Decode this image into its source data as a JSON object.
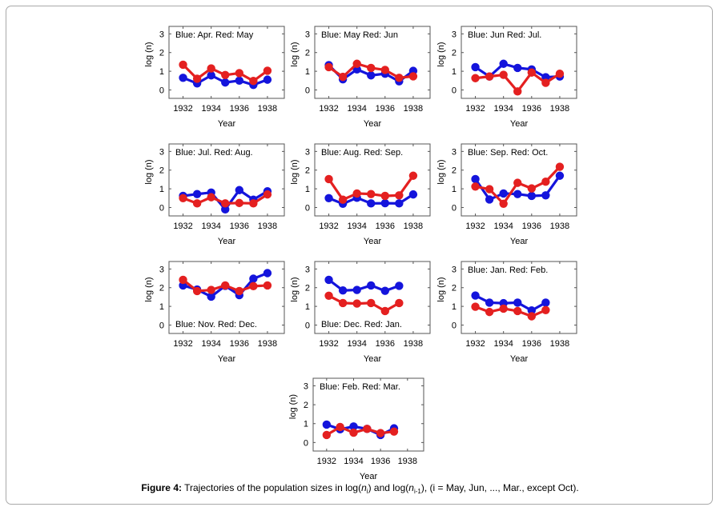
{
  "chart_data": [
    {
      "type": "line",
      "annotation": "Blue: Apr.   Red: May",
      "xlabel": "Year",
      "ylabel": "log (n)",
      "xticks": [
        1932,
        1934,
        1936,
        1938
      ],
      "yticks": [
        0,
        1,
        2,
        3
      ],
      "xlim": [
        1931,
        1939.2
      ],
      "ylim": [
        -0.45,
        3.4
      ],
      "annotation_position": "top",
      "x": [
        1932,
        1933,
        1934,
        1935,
        1936,
        1937,
        1938
      ],
      "series": [
        {
          "name": "Blue: Apr.",
          "color": "#1414dc",
          "values": [
            0.65,
            0.35,
            0.78,
            0.4,
            0.5,
            0.27,
            0.55
          ]
        },
        {
          "name": "Red: May",
          "color": "#e42020",
          "values": [
            1.35,
            0.6,
            1.15,
            0.8,
            0.9,
            0.48,
            1.03
          ]
        }
      ]
    },
    {
      "type": "line",
      "annotation": "Blue: May   Red: Jun",
      "xlabel": "Year",
      "ylabel": "log (n)",
      "xticks": [
        1932,
        1934,
        1936,
        1938
      ],
      "yticks": [
        0,
        1,
        2,
        3
      ],
      "xlim": [
        1931,
        1939.2
      ],
      "ylim": [
        -0.45,
        3.4
      ],
      "annotation_position": "top",
      "x": [
        1932,
        1933,
        1934,
        1935,
        1936,
        1937,
        1938
      ],
      "series": [
        {
          "name": "Blue: May",
          "color": "#1414dc",
          "values": [
            1.33,
            0.57,
            1.1,
            0.78,
            0.87,
            0.46,
            1.02
          ]
        },
        {
          "name": "Red: Jun",
          "color": "#e42020",
          "values": [
            1.22,
            0.7,
            1.4,
            1.18,
            1.07,
            0.65,
            0.73
          ]
        }
      ]
    },
    {
      "type": "line",
      "annotation": "Blue: Jun   Red: Jul.",
      "xlabel": "Year",
      "ylabel": "log (n)",
      "xticks": [
        1932,
        1934,
        1936,
        1938
      ],
      "yticks": [
        0,
        1,
        2,
        3
      ],
      "xlim": [
        1931,
        1939.2
      ],
      "ylim": [
        -0.45,
        3.4
      ],
      "annotation_position": "top",
      "x": [
        1932,
        1933,
        1934,
        1935,
        1936,
        1937,
        1938
      ],
      "series": [
        {
          "name": "Blue: Jun",
          "color": "#1414dc",
          "values": [
            1.22,
            0.72,
            1.4,
            1.18,
            1.1,
            0.68,
            0.72
          ]
        },
        {
          "name": "Red: Jul.",
          "color": "#e42020",
          "values": [
            0.63,
            0.72,
            0.81,
            -0.08,
            0.93,
            0.38,
            0.87
          ]
        }
      ]
    },
    {
      "type": "line",
      "annotation": "Blue: Jul.   Red: Aug.",
      "xlabel": "Year",
      "ylabel": "log (n)",
      "xticks": [
        1932,
        1934,
        1936,
        1938
      ],
      "yticks": [
        0,
        1,
        2,
        3
      ],
      "xlim": [
        1931,
        1939.2
      ],
      "ylim": [
        -0.45,
        3.4
      ],
      "annotation_position": "top",
      "x": [
        1932,
        1933,
        1934,
        1935,
        1936,
        1937,
        1938
      ],
      "series": [
        {
          "name": "Blue: Jul.",
          "color": "#1414dc",
          "values": [
            0.62,
            0.72,
            0.8,
            -0.1,
            0.93,
            0.42,
            0.87
          ]
        },
        {
          "name": "Red: Aug.",
          "color": "#e42020",
          "values": [
            0.5,
            0.22,
            0.55,
            0.22,
            0.24,
            0.22,
            0.7
          ]
        }
      ]
    },
    {
      "type": "line",
      "annotation": "Blue: Aug.   Red: Sep.",
      "xlabel": "Year",
      "ylabel": "log (n)",
      "xticks": [
        1932,
        1934,
        1936,
        1938
      ],
      "yticks": [
        0,
        1,
        2,
        3
      ],
      "xlim": [
        1931,
        1939.2
      ],
      "ylim": [
        -0.45,
        3.4
      ],
      "annotation_position": "top",
      "x": [
        1932,
        1933,
        1934,
        1935,
        1936,
        1937,
        1938
      ],
      "series": [
        {
          "name": "Blue: Aug.",
          "color": "#1414dc",
          "values": [
            0.5,
            0.2,
            0.52,
            0.22,
            0.23,
            0.22,
            0.7
          ]
        },
        {
          "name": "Red: Sep.",
          "color": "#e42020",
          "values": [
            1.52,
            0.42,
            0.75,
            0.72,
            0.62,
            0.65,
            1.7
          ]
        }
      ]
    },
    {
      "type": "line",
      "annotation": "Blue: Sep.   Red: Oct.",
      "xlabel": "Year",
      "ylabel": "log (n)",
      "xticks": [
        1932,
        1934,
        1936,
        1938
      ],
      "yticks": [
        0,
        1,
        2,
        3
      ],
      "xlim": [
        1931,
        1939.2
      ],
      "ylim": [
        -0.45,
        3.4
      ],
      "annotation_position": "top",
      "x": [
        1932,
        1933,
        1934,
        1935,
        1936,
        1937,
        1938
      ],
      "series": [
        {
          "name": "Blue: Sep.",
          "color": "#1414dc",
          "values": [
            1.52,
            0.43,
            0.75,
            0.72,
            0.62,
            0.65,
            1.7
          ]
        },
        {
          "name": "Red: Oct.",
          "color": "#e42020",
          "values": [
            1.12,
            0.98,
            0.2,
            1.32,
            1.02,
            1.38,
            2.18
          ]
        }
      ]
    },
    {
      "type": "line",
      "annotation": "Blue: Nov.   Red: Dec.",
      "xlabel": "Year",
      "ylabel": "log (n)",
      "xticks": [
        1932,
        1934,
        1936,
        1938
      ],
      "yticks": [
        0,
        1,
        2,
        3
      ],
      "xlim": [
        1931,
        1939.2
      ],
      "ylim": [
        -0.45,
        3.4
      ],
      "annotation_position": "bottom",
      "x": [
        1932,
        1933,
        1934,
        1935,
        1936,
        1937,
        1938
      ],
      "series": [
        {
          "name": "Blue: Nov.",
          "color": "#1414dc",
          "values": [
            2.12,
            1.9,
            1.52,
            2.1,
            1.6,
            2.48,
            2.78
          ]
        },
        {
          "name": "Red: Dec.",
          "color": "#e42020",
          "values": [
            2.42,
            1.82,
            1.88,
            2.12,
            1.82,
            2.08,
            2.12
          ]
        }
      ]
    },
    {
      "type": "line",
      "annotation": "Blue: Dec.   Red: Jan.",
      "xlabel": "Year",
      "ylabel": "log (n)",
      "xticks": [
        1932,
        1934,
        1936,
        1938
      ],
      "yticks": [
        0,
        1,
        2,
        3
      ],
      "xlim": [
        1931,
        1939.2
      ],
      "ylim": [
        -0.45,
        3.4
      ],
      "annotation_position": "bottom",
      "x": [
        1932,
        1933,
        1934,
        1935,
        1936,
        1937
      ],
      "series": [
        {
          "name": "Blue: Dec.",
          "color": "#1414dc",
          "values": [
            2.42,
            1.85,
            1.88,
            2.12,
            1.83,
            2.1
          ]
        },
        {
          "name": "Red: Jan.",
          "color": "#e42020",
          "values": [
            1.57,
            1.18,
            1.15,
            1.18,
            0.75,
            1.18
          ]
        }
      ]
    },
    {
      "type": "line",
      "annotation": "Blue: Jan.   Red: Feb.",
      "xlabel": "Year",
      "ylabel": "log (n)",
      "xticks": [
        1932,
        1934,
        1936,
        1938
      ],
      "yticks": [
        0,
        1,
        2,
        3
      ],
      "xlim": [
        1931,
        1939.2
      ],
      "ylim": [
        -0.45,
        3.4
      ],
      "annotation_position": "top",
      "x": [
        1932,
        1933,
        1934,
        1935,
        1936,
        1937
      ],
      "series": [
        {
          "name": "Blue: Jan.",
          "color": "#1414dc",
          "values": [
            1.58,
            1.2,
            1.17,
            1.2,
            0.78,
            1.2
          ]
        },
        {
          "name": "Red: Feb.",
          "color": "#e42020",
          "values": [
            0.98,
            0.7,
            0.88,
            0.75,
            0.47,
            0.8
          ]
        }
      ]
    },
    {
      "type": "line",
      "annotation": "Blue: Feb.   Red: Mar.",
      "xlabel": "Year",
      "ylabel": "log (n)",
      "xticks": [
        1932,
        1934,
        1936,
        1938
      ],
      "yticks": [
        0,
        1,
        2,
        3
      ],
      "xlim": [
        1931,
        1939.2
      ],
      "ylim": [
        -0.45,
        3.4
      ],
      "annotation_position": "top",
      "x": [
        1932,
        1933,
        1934,
        1935,
        1936,
        1937
      ],
      "series": [
        {
          "name": "Blue: Feb.",
          "color": "#1414dc",
          "values": [
            0.95,
            0.7,
            0.85,
            0.72,
            0.4,
            0.75
          ]
        },
        {
          "name": "Red: Mar.",
          "color": "#e42020",
          "values": [
            0.4,
            0.82,
            0.52,
            0.72,
            0.5,
            0.58
          ]
        }
      ]
    }
  ],
  "caption": {
    "label": "Figure 4:",
    "text_before": " Trajectories of the population sizes in log(",
    "var1": "n",
    "sub1": "i",
    "text_mid": ") and log(",
    "var2": "n",
    "sub2": "i-1",
    "text_after": "), (i = May, Jun, ..., Mar., except Oct)."
  }
}
